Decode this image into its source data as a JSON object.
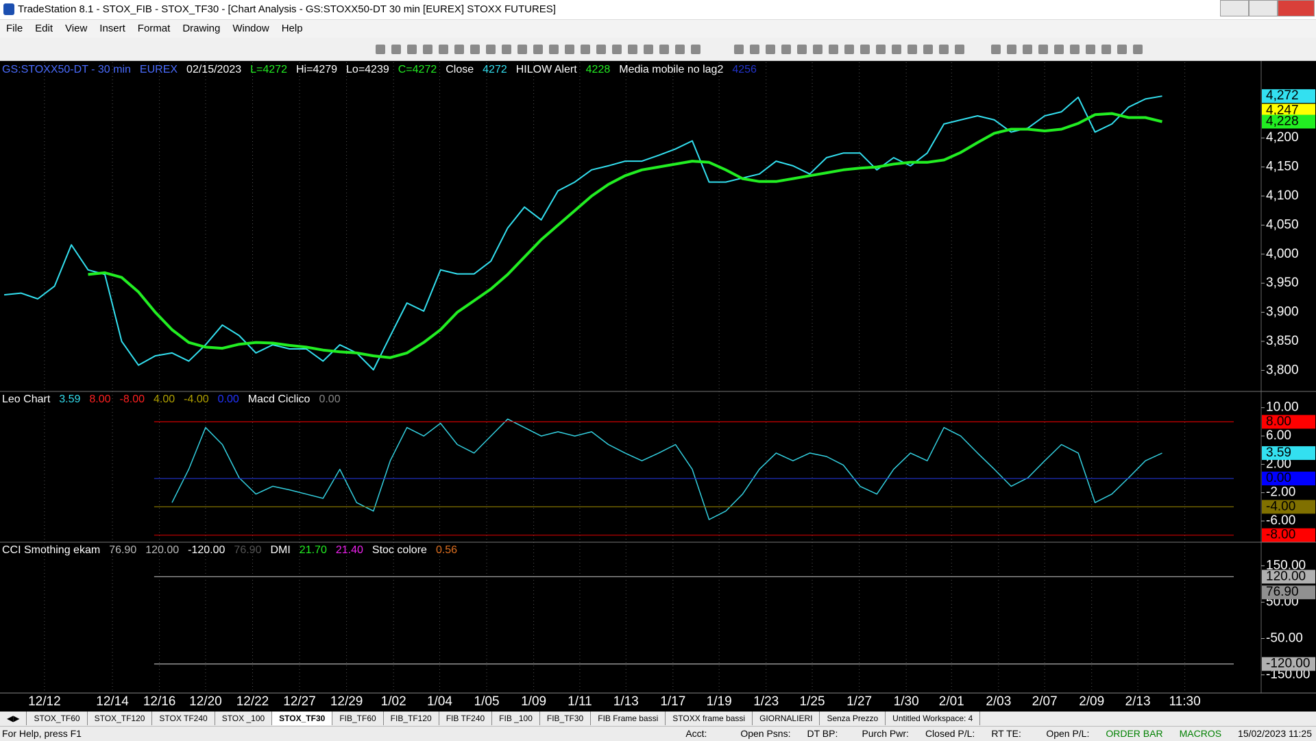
{
  "window": {
    "title": "TradeStation 8.1 - STOX_FIB - STOX_TF30 - [Chart Analysis - GS:STOXX50-DT  30 min  [EUREX] STOXX FUTURES]"
  },
  "menu": [
    "File",
    "Edit",
    "View",
    "Insert",
    "Format",
    "Drawing",
    "Window",
    "Help"
  ],
  "chart_data": [
    {
      "type": "line",
      "legend": [
        {
          "text": "GS:STOXX50-DT - 30 min",
          "color": "#4a6cff"
        },
        {
          "text": "EUREX",
          "color": "#4a6cff"
        },
        {
          "text": "02/15/2023",
          "color": "#ffffff"
        },
        {
          "text": "L=4272",
          "color": "#22ee22"
        },
        {
          "text": "Hi=4279",
          "color": "#ffffff"
        },
        {
          "text": "Lo=4239",
          "color": "#ffffff"
        },
        {
          "text": "C=4272",
          "color": "#22ee22"
        },
        {
          "text": "Close",
          "color": "#ffffff"
        },
        {
          "text": "4272",
          "color": "#33e0f0"
        },
        {
          "text": "HILOW Alert",
          "color": "#ffffff"
        },
        {
          "text": "4228",
          "color": "#22ee22"
        },
        {
          "text": "Media mobile no lag2",
          "color": "#ffffff"
        },
        {
          "text": "4256",
          "color": "#2233cc"
        }
      ],
      "x": [
        0,
        1,
        2,
        3,
        4,
        5,
        6,
        7,
        8,
        9,
        10,
        11,
        12,
        13,
        14,
        15,
        16,
        17,
        18,
        19,
        20,
        21,
        22,
        23,
        24,
        25,
        26,
        27,
        28,
        29,
        30,
        31,
        32,
        33,
        34,
        35,
        36,
        37,
        38,
        39,
        40,
        41,
        42,
        43,
        44,
        45,
        46,
        47,
        48,
        49,
        50,
        51,
        52,
        53,
        54,
        55,
        56,
        57,
        58,
        59,
        60,
        61,
        62,
        63,
        64,
        65,
        66,
        67,
        68,
        69
      ],
      "xlim": [
        -0.25,
        74.9
      ],
      "xticks": [
        {
          "value": 2.4,
          "label": "12/12"
        },
        {
          "value": 6.45,
          "label": "12/14"
        },
        {
          "value": 9.25,
          "label": "12/16"
        },
        {
          "value": 12,
          "label": "12/20"
        },
        {
          "value": 14.8,
          "label": "12/22"
        },
        {
          "value": 17.6,
          "label": "12/27"
        },
        {
          "value": 20.4,
          "label": "12/29"
        },
        {
          "value": 23.2,
          "label": "1/02"
        },
        {
          "value": 25.95,
          "label": "1/04"
        },
        {
          "value": 28.75,
          "label": "1/05"
        },
        {
          "value": 31.55,
          "label": "1/09"
        },
        {
          "value": 34.3,
          "label": "1/11"
        },
        {
          "value": 37.05,
          "label": "1/13"
        },
        {
          "value": 39.85,
          "label": "1/17"
        },
        {
          "value": 42.6,
          "label": "1/19"
        },
        {
          "value": 45.4,
          "label": "1/23"
        },
        {
          "value": 48.15,
          "label": "1/25"
        },
        {
          "value": 50.95,
          "label": "1/27"
        },
        {
          "value": 53.75,
          "label": "1/30"
        },
        {
          "value": 56.45,
          "label": "2/01"
        },
        {
          "value": 59.25,
          "label": "2/03"
        },
        {
          "value": 62,
          "label": "2/07"
        },
        {
          "value": 64.8,
          "label": "2/09"
        },
        {
          "value": 67.55,
          "label": "2/13"
        },
        {
          "value": 70.35,
          "label": "11:30"
        }
      ],
      "ylim": [
        3765,
        4330
      ],
      "yticks": [
        {
          "value": 3800,
          "label": "3,800"
        },
        {
          "value": 3850,
          "label": "3,850"
        },
        {
          "value": 3900,
          "label": "3,900"
        },
        {
          "value": 3950,
          "label": "3,950"
        },
        {
          "value": 4000,
          "label": "4,000"
        },
        {
          "value": 4050,
          "label": "4,050"
        },
        {
          "value": 4100,
          "label": "4,100"
        },
        {
          "value": 4150,
          "label": "4,150"
        },
        {
          "value": 4200,
          "label": "4,200"
        }
      ],
      "markers": [
        {
          "value": 4272,
          "label": "4,272",
          "color": "#33e0f0",
          "label_color": "#000000"
        },
        {
          "value": 4247,
          "label": "4,247",
          "color": "#ffff00",
          "label_color": "#000000"
        },
        {
          "value": 4228,
          "label": "4,228",
          "color": "#22ee22",
          "label_color": "#000000"
        }
      ],
      "series": [
        {
          "color": "#33e0f0",
          "width": 2,
          "values": [
            3930,
            3933,
            3923,
            3945,
            4016,
            3973,
            3965,
            3850,
            3809,
            3825,
            3830,
            3816,
            3844,
            3878,
            3860,
            3830,
            3844,
            3837,
            3837,
            3816,
            3844,
            3830,
            3801,
            3859,
            3916,
            3902,
            3973,
            3966,
            3966,
            3988,
            4045,
            4081,
            4059,
            4109,
            4124,
            4145,
            4152,
            4160,
            4160,
            4170,
            4181,
            4195,
            4124,
            4124,
            4131,
            4138,
            4160,
            4152,
            4138,
            4166,
            4174,
            4174,
            4145,
            4166,
            4152,
            4174,
            4224,
            4231,
            4238,
            4231,
            4210,
            4217,
            4238,
            4245,
            4270,
            4210,
            4224,
            4253,
            4267,
            4272
          ]
        },
        {
          "color": "#22ee22",
          "width": 4,
          "values": [
            null,
            null,
            null,
            null,
            null,
            3965,
            3968,
            3960,
            3935,
            3900,
            3870,
            3848,
            3840,
            3838,
            3845,
            3848,
            3847,
            3843,
            3840,
            3835,
            3832,
            3830,
            3825,
            3822,
            3830,
            3848,
            3870,
            3900,
            3920,
            3940,
            3965,
            3995,
            4025,
            4050,
            4075,
            4100,
            4120,
            4135,
            4145,
            4150,
            4155,
            4160,
            4158,
            4145,
            4130,
            4125,
            4125,
            4130,
            4135,
            4140,
            4145,
            4148,
            4150,
            4155,
            4158,
            4158,
            4162,
            4175,
            4192,
            4208,
            4215,
            4215,
            4212,
            4215,
            4225,
            4240,
            4242,
            4235,
            4235,
            4228
          ]
        }
      ]
    },
    {
      "type": "line",
      "legend": [
        {
          "text": "Leo Chart",
          "color": "#ffffff"
        },
        {
          "text": "3.59",
          "color": "#33e0f0"
        },
        {
          "text": "8.00",
          "color": "#ff2020"
        },
        {
          "text": "-8.00",
          "color": "#ff2020"
        },
        {
          "text": "4.00",
          "color": "#b0a000"
        },
        {
          "text": "-4.00",
          "color": "#b0a000"
        },
        {
          "text": "0.00",
          "color": "#2233ff"
        },
        {
          "text": "Macd Ciclico",
          "color": "#ffffff"
        },
        {
          "text": "0.00",
          "color": "#888888"
        }
      ],
      "x": [
        0,
        1,
        2,
        3,
        4,
        5,
        6,
        7,
        8,
        9,
        10,
        11,
        12,
        13,
        14,
        15,
        16,
        17,
        18,
        19,
        20,
        21,
        22,
        23,
        24,
        25,
        26,
        27,
        28,
        29,
        30,
        31,
        32,
        33,
        34,
        35,
        36,
        37,
        38,
        39,
        40,
        41,
        42,
        43,
        44,
        45,
        46,
        47,
        48,
        49,
        50,
        51,
        52,
        53,
        54,
        55,
        56,
        57,
        58,
        59,
        60,
        61,
        62,
        63,
        64,
        65,
        66,
        67,
        68,
        69
      ],
      "xlim": [
        -0.25,
        74.9
      ],
      "ylim": [
        -8.9,
        12.2
      ],
      "yticks": [
        {
          "value": 10,
          "label": "10.00"
        },
        {
          "value": 6,
          "label": "6.00"
        },
        {
          "value": 2,
          "label": "2.00"
        },
        {
          "value": -2,
          "label": "-2.00"
        },
        {
          "value": -6,
          "label": "-6.00"
        }
      ],
      "markers": [
        {
          "value": 8,
          "label": "8.00",
          "color": "#ff0000",
          "label_color": "#000000",
          "line": "#cc0000"
        },
        {
          "value": 3.59,
          "label": "3.59",
          "color": "#33e0f0",
          "label_color": "#000000"
        },
        {
          "value": 0,
          "label": "0.00",
          "color": "#0000ff",
          "label_color": "#000000",
          "line": "#2233cc"
        },
        {
          "value": -4,
          "label": "-4.00",
          "color": "#807000",
          "label_color": "#000000",
          "line": "#807000"
        },
        {
          "value": -8,
          "label": "-8.00",
          "color": "#ff0000",
          "label_color": "#000000",
          "line": "#cc0000"
        }
      ],
      "series": [
        {
          "color": "#33d0e0",
          "width": 1.5,
          "values": [
            null,
            null,
            null,
            null,
            null,
            null,
            null,
            null,
            null,
            null,
            -3.4,
            1.3,
            7.2,
            4.8,
            0.1,
            -2.2,
            -1.1,
            -1.6,
            -2.2,
            -2.8,
            1.3,
            -3.4,
            -4.6,
            2.5,
            7.2,
            6.0,
            7.8,
            4.8,
            3.6,
            6.0,
            8.4,
            7.2,
            6.0,
            6.6,
            6.0,
            6.6,
            4.8,
            3.6,
            2.5,
            3.6,
            4.8,
            1.3,
            -5.8,
            -4.6,
            -2.2,
            1.3,
            3.6,
            2.5,
            3.6,
            3.1,
            1.9,
            -1.1,
            -2.2,
            1.3,
            3.6,
            2.5,
            7.2,
            6.0,
            3.6,
            1.3,
            -1.1,
            0.1,
            2.5,
            4.8,
            3.6,
            -3.4,
            -2.2,
            0.1,
            2.5,
            3.59
          ]
        }
      ]
    },
    {
      "type": "line",
      "legend": [
        {
          "text": "CCI Smothing ekam",
          "color": "#ffffff"
        },
        {
          "text": "76.90",
          "color": "#bbbbbb"
        },
        {
          "text": "120.00",
          "color": "#bbbbbb"
        },
        {
          "text": "-120.00",
          "color": "#ffffff"
        },
        {
          "text": "76.90",
          "color": "#555555"
        },
        {
          "text": "DMI",
          "color": "#ffffff"
        },
        {
          "text": "21.70",
          "color": "#22ee22"
        },
        {
          "text": "21.40",
          "color": "#ee22ee"
        },
        {
          "text": "Stoc colore",
          "color": "#ffffff"
        },
        {
          "text": "0.56",
          "color": "#e07020"
        }
      ],
      "ylim": [
        -198,
        213
      ],
      "yticks": [
        {
          "value": 150,
          "label": "150.00"
        },
        {
          "value": 50,
          "label": "50.00"
        },
        {
          "value": -50,
          "label": "-50.00"
        },
        {
          "value": -150,
          "label": "-150.00"
        }
      ],
      "markers": [
        {
          "value": 120,
          "label": "120.00",
          "color": "#b0b0b0",
          "label_color": "#000000",
          "line": "#b0b0b0"
        },
        {
          "value": 76.9,
          "label": "76.90",
          "color": "#909090",
          "label_color": "#000000"
        },
        {
          "value": -120,
          "label": "-120.00",
          "color": "#b0b0b0",
          "label_color": "#000000",
          "line": "#b0b0b0"
        }
      ],
      "series": []
    }
  ],
  "tabs": [
    "STOX_TF60",
    "STOX_TF120",
    "STOX TF240",
    "STOX _100",
    "STOX_TF30",
    "FIB_TF60",
    "FIB_TF120",
    "FIB TF240",
    "FIB _100",
    "FIB_TF30",
    "FIB Frame bassi",
    "STOXX frame bassi",
    "GIORNALIERI",
    "Senza Prezzo",
    "Untitled Workspace: 4"
  ],
  "active_tab": "STOX_TF30",
  "status": {
    "help": "For Help, press F1",
    "fields": [
      "Acct:",
      "Open Psns:",
      "DT BP:",
      "Purch Pwr:",
      "Closed P/L:",
      "RT TE:",
      "Open P/L:"
    ],
    "macros": [
      "ORDER BAR",
      "MACROS"
    ],
    "datetime": "15/02/2023 11:25"
  }
}
